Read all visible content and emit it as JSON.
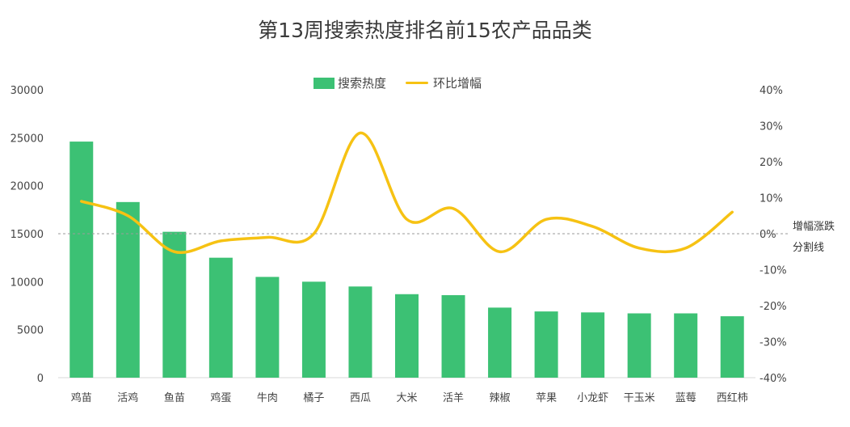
{
  "chart_data": {
    "type": "bar",
    "title": "第13周搜索热度排名前15农产品品类",
    "categories": [
      "鸡苗",
      "活鸡",
      "鱼苗",
      "鸡蛋",
      "牛肉",
      "橘子",
      "西瓜",
      "大米",
      "活羊",
      "辣椒",
      "苹果",
      "小龙虾",
      "干玉米",
      "蓝莓",
      "西红柿"
    ],
    "series": [
      {
        "name": "搜索热度",
        "type": "bar",
        "axis": "left",
        "color": "#3cc174",
        "values": [
          24600,
          18300,
          15200,
          12500,
          10500,
          10000,
          9500,
          8700,
          8600,
          7300,
          6900,
          6800,
          6700,
          6700,
          6400
        ]
      },
      {
        "name": "环比增幅",
        "type": "line",
        "axis": "right",
        "color": "#f6c213",
        "values": [
          0.09,
          0.05,
          -0.05,
          -0.02,
          -0.01,
          0.0,
          0.28,
          0.04,
          0.07,
          -0.05,
          0.04,
          0.02,
          -0.04,
          -0.04,
          0.06
        ]
      }
    ],
    "y_left": {
      "min": 0,
      "max": 30000,
      "step": 5000,
      "tick_labels": [
        "0",
        "5000",
        "10000",
        "15000",
        "20000",
        "25000",
        "30000"
      ]
    },
    "y_right": {
      "min": -0.4,
      "max": 0.4,
      "step": 0.1,
      "tick_labels": [
        "-40%",
        "-30%",
        "-20%",
        "-10%",
        "0%",
        "10%",
        "20%",
        "30%",
        "40%"
      ]
    },
    "reference_line": {
      "axis": "right",
      "value": 0.0,
      "label_lines": [
        "增幅涨跌",
        "分割线"
      ],
      "style": "dashed"
    },
    "legend": {
      "position": "top"
    },
    "grid": false
  }
}
